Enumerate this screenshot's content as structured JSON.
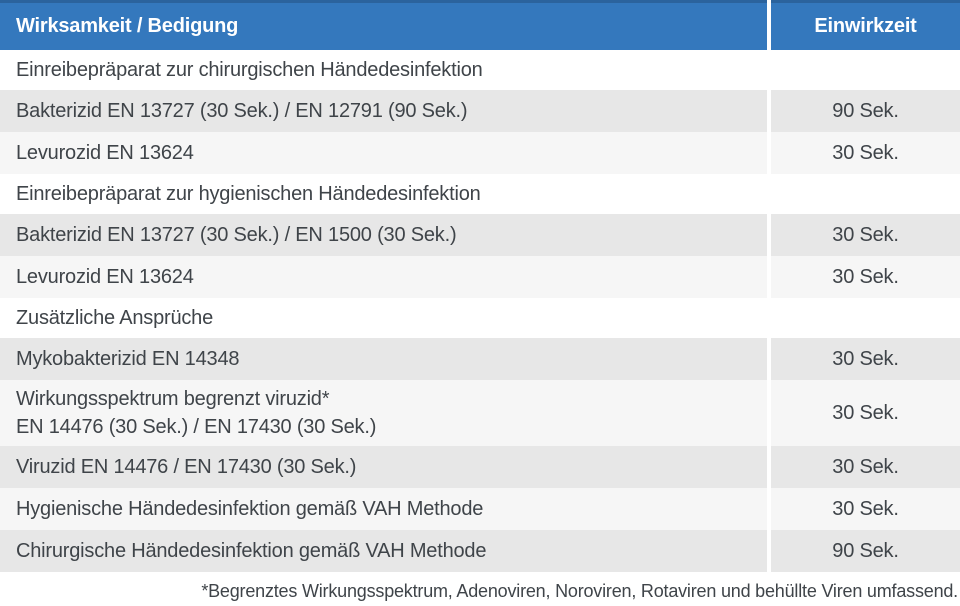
{
  "colors": {
    "header_bg": "#3478BD",
    "header_top_strip": "#2B639D",
    "row_dark": "#E7E7E7",
    "row_light": "#F6F6F6",
    "text": "#3F4449",
    "header_text": "#FFFFFF"
  },
  "table": {
    "header": {
      "col1": "Wirksamkeit / Bedigung",
      "col2": "Einwirkzeit"
    },
    "rows": [
      {
        "type": "section",
        "label": "Einreibepräparat zur chirurgischen Händedesinfektion"
      },
      {
        "type": "data",
        "shade": "dark",
        "label": "Bakterizid EN 13727 (30 Sek.) / EN 12791 (90 Sek.)",
        "value": "90 Sek."
      },
      {
        "type": "data",
        "shade": "light",
        "label": "Levurozid EN 13624",
        "value": "30 Sek."
      },
      {
        "type": "section",
        "label": "Einreibepräparat zur hygienischen Händedesinfektion"
      },
      {
        "type": "data",
        "shade": "dark",
        "label": "Bakterizid EN 13727 (30 Sek.) / EN 1500 (30 Sek.)",
        "value": "30 Sek."
      },
      {
        "type": "data",
        "shade": "light",
        "label": "Levurozid EN 13624",
        "value": "30 Sek."
      },
      {
        "type": "section",
        "label": "Zusätzliche Ansprüche"
      },
      {
        "type": "data",
        "shade": "dark",
        "label": "Mykobakterizid EN 14348",
        "value": "30 Sek."
      },
      {
        "type": "data",
        "shade": "light",
        "label_lines": [
          "Wirkungsspektrum begrenzt viruzid*",
          "EN 14476 (30 Sek.) / EN 17430 (30 Sek.)"
        ],
        "value": "30 Sek."
      },
      {
        "type": "data",
        "shade": "dark",
        "label": "Viruzid EN 14476 / EN 17430 (30 Sek.)",
        "value": "30 Sek."
      },
      {
        "type": "data",
        "shade": "light",
        "label": "Hygienische Händedesinfektion gemäß VAH Methode",
        "value": "30 Sek."
      },
      {
        "type": "data",
        "shade": "dark",
        "label": "Chirurgische Händedesinfektion gemäß VAH Methode",
        "value": "90 Sek."
      }
    ],
    "footnote": "*Begrenztes Wirkungsspektrum, Adenoviren, Noroviren, Rotaviren und behüllte Viren umfassend."
  }
}
